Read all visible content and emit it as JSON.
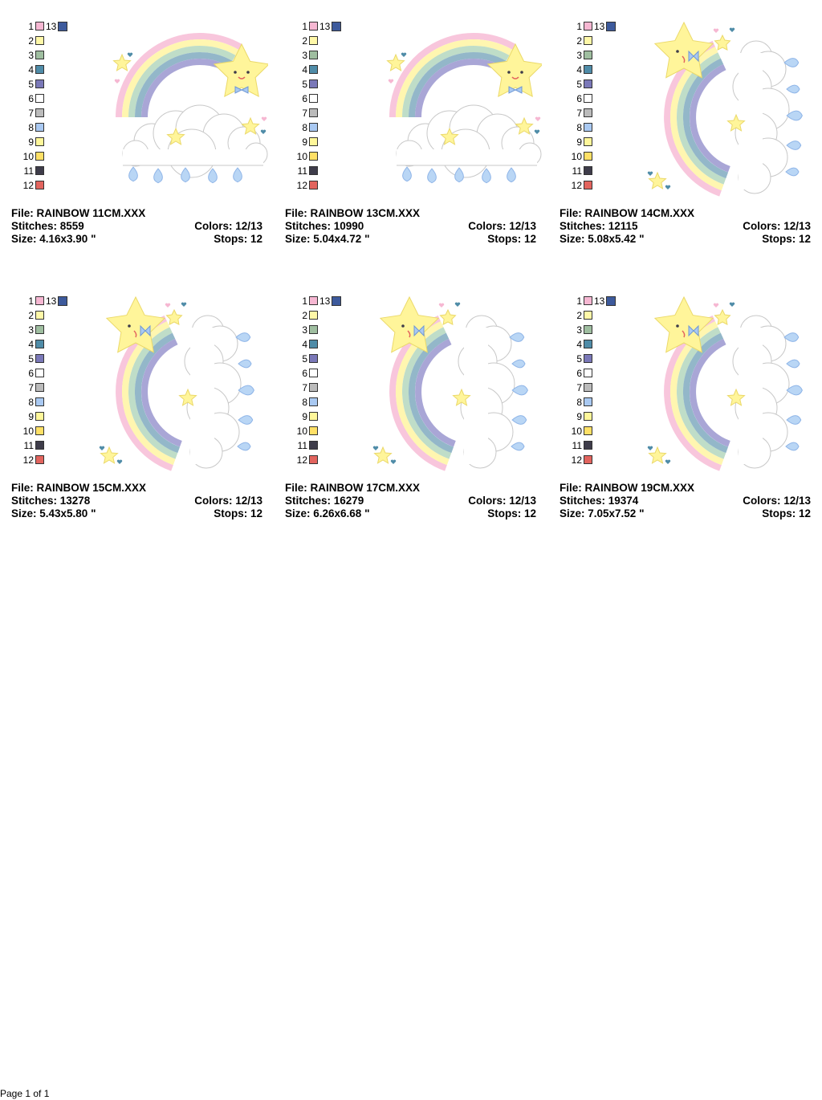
{
  "palette": {
    "extra_number": "13",
    "extra_color": "#3D5A9C",
    "numbers": [
      "1",
      "2",
      "3",
      "4",
      "5",
      "6",
      "7",
      "8",
      "9",
      "10",
      "11",
      "12"
    ],
    "colors": [
      "#F6B7D2",
      "#FFF8A8",
      "#9FBEA0",
      "#4F8CA8",
      "#7A78B8",
      "#FFFFFF",
      "#BBBBBB",
      "#A9C9F2",
      "#FFF79A",
      "#FFE066",
      "#3E3C4A",
      "#E2645E"
    ]
  },
  "designs": [
    {
      "file": "File: RAINBOW 11CM.XXX",
      "stitches": "Stitches: 8559",
      "colors": "Colors: 12/13",
      "size": "Size: 4.16x3.90 \"",
      "stops": "Stops: 12",
      "layout": "landscape"
    },
    {
      "file": "File: RAINBOW 13CM.XXX",
      "stitches": "Stitches: 10990",
      "colors": "Colors: 12/13",
      "size": "Size: 5.04x4.72 \"",
      "stops": "Stops: 12",
      "layout": "landscape"
    },
    {
      "file": "File: RAINBOW 14CM.XXX",
      "stitches": "Stitches: 12115",
      "colors": "Colors: 12/13",
      "size": "Size: 5.08x5.42 \"",
      "stops": "Stops: 12",
      "layout": "portrait"
    },
    {
      "file": "File: RAINBOW 15CM.XXX",
      "stitches": "Stitches: 13278",
      "colors": "Colors: 12/13",
      "size": "Size: 5.43x5.80 \"",
      "stops": "Stops: 12",
      "layout": "portrait"
    },
    {
      "file": "File: RAINBOW 17CM.XXX",
      "stitches": "Stitches: 16279",
      "colors": "Colors: 12/13",
      "size": "Size: 6.26x6.68 \"",
      "stops": "Stops: 12",
      "layout": "portrait"
    },
    {
      "file": "File: RAINBOW 19CM.XXX",
      "stitches": "Stitches: 19374",
      "colors": "Colors: 12/13",
      "size": "Size: 7.05x7.52 \"",
      "stops": "Stops: 12",
      "layout": "portrait"
    }
  ],
  "footer": "Page 1 of 1"
}
